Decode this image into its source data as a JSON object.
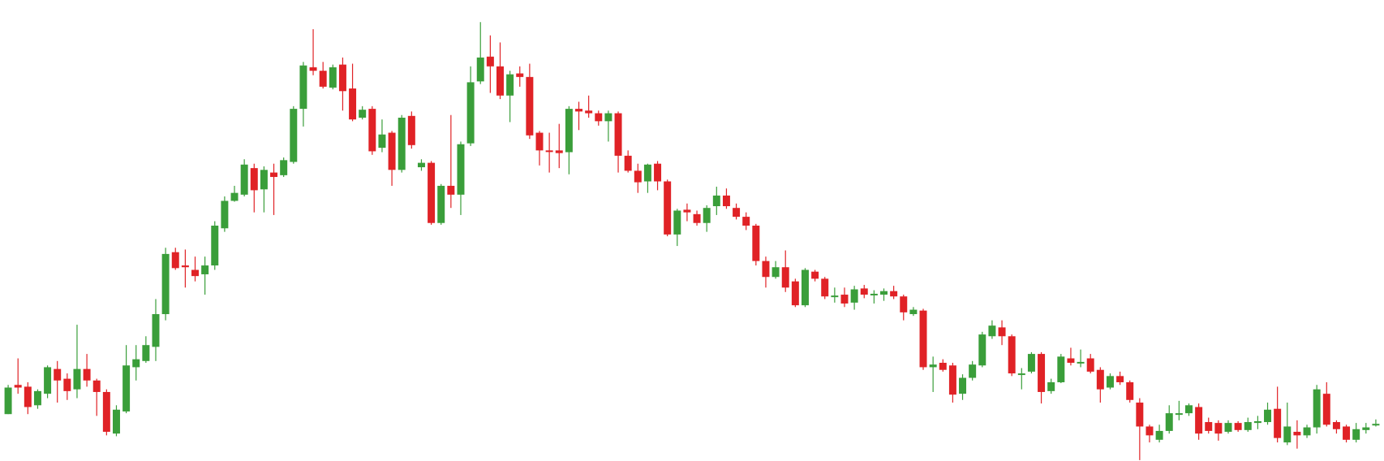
{
  "chart_data": {
    "type": "candlestick",
    "open": [
      53,
      86,
      84,
      63,
      76,
      104,
      93,
      81,
      104,
      91,
      78,
      31,
      56,
      106,
      113,
      129,
      166,
      236,
      221,
      216,
      211,
      221,
      263,
      294,
      301,
      331,
      307,
      326,
      323,
      338,
      398,
      445,
      441,
      422,
      448,
      421,
      388,
      398,
      354,
      371,
      329,
      390,
      332,
      337,
      269,
      311,
      301,
      359,
      429,
      457,
      446,
      413,
      438,
      434,
      371,
      351,
      351,
      349,
      398,
      396,
      393,
      384,
      393,
      345,
      328,
      316,
      336,
      316,
      256,
      284,
      279,
      269,
      288,
      300,
      286,
      276,
      266,
      226,
      208,
      219,
      203,
      176,
      214,
      206,
      186,
      188,
      179,
      195,
      188,
      188,
      192,
      186,
      166,
      170,
      106,
      111,
      108,
      76,
      94,
      108,
      141,
      151,
      141,
      98,
      101,
      121,
      79,
      89,
      116,
      111,
      116,
      103,
      83,
      96,
      89,
      66,
      39,
      24,
      34,
      53,
      54,
      61,
      44,
      43,
      33,
      43,
      35,
      43,
      44,
      59,
      21,
      33,
      29,
      38,
      76,
      44,
      39,
      24,
      35,
      41
    ],
    "high": [
      86,
      116,
      89,
      81,
      108,
      113,
      99,
      154,
      121,
      93,
      81,
      63,
      131,
      131,
      141,
      183,
      241,
      241,
      239,
      231,
      231,
      271,
      299,
      311,
      341,
      336,
      333,
      336,
      343,
      401,
      451,
      488,
      451,
      448,
      456,
      449,
      401,
      401,
      386,
      373,
      391,
      395,
      341,
      339,
      313,
      391,
      361,
      446,
      496,
      481,
      473,
      441,
      446,
      449,
      373,
      371,
      381,
      401,
      406,
      413,
      396,
      396,
      395,
      351,
      336,
      336,
      339,
      318,
      285,
      291,
      283,
      289,
      310,
      308,
      291,
      281,
      268,
      231,
      226,
      238,
      206,
      218,
      216,
      208,
      196,
      196,
      198,
      199,
      193,
      195,
      198,
      188,
      174,
      172,
      118,
      115,
      111,
      98,
      113,
      146,
      159,
      159,
      143,
      105,
      123,
      123,
      93,
      121,
      128,
      126,
      121,
      106,
      99,
      101,
      91,
      71,
      41,
      41,
      63,
      68,
      65,
      65,
      49,
      46,
      46,
      45,
      49,
      51,
      66,
      84,
      66,
      46,
      41,
      86,
      89,
      46,
      41,
      43,
      43,
      47
    ],
    "low": [
      53,
      76,
      53,
      59,
      71,
      66,
      69,
      71,
      84,
      51,
      29,
      28,
      54,
      91,
      111,
      113,
      159,
      216,
      196,
      203,
      188,
      216,
      259,
      293,
      299,
      281,
      281,
      278,
      321,
      336,
      378,
      436,
      421,
      420,
      396,
      384,
      386,
      346,
      349,
      311,
      326,
      353,
      328,
      267,
      267,
      286,
      278,
      356,
      426,
      416,
      409,
      383,
      423,
      364,
      334,
      326,
      331,
      324,
      374,
      388,
      379,
      361,
      326,
      326,
      303,
      303,
      306,
      254,
      243,
      271,
      266,
      259,
      278,
      285,
      273,
      261,
      221,
      196,
      206,
      191,
      174,
      174,
      203,
      183,
      179,
      174,
      171,
      184,
      178,
      181,
      183,
      159,
      164,
      103,
      78,
      101,
      66,
      69,
      91,
      106,
      138,
      131,
      96,
      81,
      99,
      65,
      76,
      88,
      108,
      106,
      99,
      66,
      81,
      86,
      66,
      1,
      21,
      21,
      31,
      46,
      51,
      24,
      31,
      23,
      31,
      33,
      33,
      36,
      41,
      21,
      18,
      14,
      26,
      31,
      39,
      31,
      21,
      21,
      31,
      39
    ],
    "close": [
      83,
      83,
      61,
      79,
      106,
      91,
      79,
      104,
      91,
      78,
      33,
      58,
      108,
      115,
      131,
      166,
      234,
      218,
      219,
      209,
      221,
      266,
      294,
      303,
      335,
      306,
      329,
      321,
      340,
      398,
      447,
      441,
      423,
      445,
      418,
      386,
      397,
      350,
      369,
      329,
      388,
      357,
      337,
      269,
      311,
      301,
      358,
      428,
      456,
      446,
      413,
      437,
      434,
      368,
      351,
      350,
      348,
      398,
      395,
      393,
      384,
      393,
      345,
      328,
      315,
      335,
      316,
      256,
      283,
      281,
      269,
      286,
      300,
      288,
      276,
      266,
      226,
      208,
      219,
      196,
      176,
      216,
      206,
      186,
      187,
      178,
      194,
      188,
      189,
      192,
      186,
      168,
      171,
      106,
      109,
      103,
      75,
      94,
      109,
      143,
      153,
      141,
      99,
      99,
      121,
      78,
      89,
      118,
      111,
      112,
      101,
      81,
      96,
      89,
      69,
      39,
      29,
      34,
      54,
      54,
      63,
      31,
      34,
      31,
      43,
      35,
      44,
      45,
      58,
      26,
      39,
      29,
      38,
      81,
      41,
      36,
      24,
      36,
      38,
      42
    ],
    "up_color": "#3a9e3a",
    "down_color": "#e02226",
    "ylim": [
      0,
      521
    ]
  }
}
